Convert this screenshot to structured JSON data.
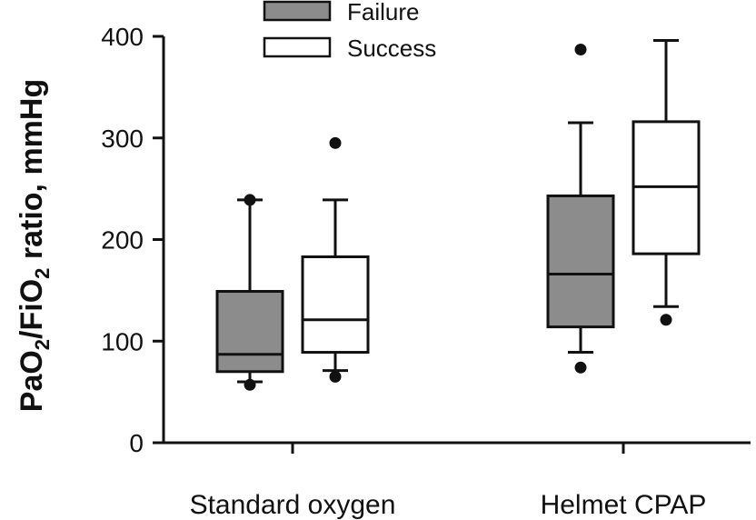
{
  "chart_data": {
    "type": "boxplot",
    "ylabel": {
      "parts": [
        "PaO",
        "2",
        "/FiO",
        "2",
        " ratio, mmHg"
      ],
      "subscript_indexes": [
        1,
        3
      ]
    },
    "ylim": [
      0,
      400
    ],
    "yticks": [
      "0",
      "100",
      "200",
      "300",
      "400"
    ],
    "categories": [
      "Standard oxygen",
      "Helmet CPAP"
    ],
    "legend": {
      "position": "top-center",
      "entries": [
        {
          "name": "Failure",
          "color": "#8c8c8c"
        },
        {
          "name": "Success",
          "color": "#ffffff"
        }
      ]
    },
    "series": [
      {
        "name": "Failure",
        "color": "#8c8c8c",
        "boxes": [
          {
            "category": "Standard oxygen",
            "whisker_low": 60,
            "q1": 70,
            "median": 87,
            "q3": 149,
            "whisker_high": 239,
            "outliers": [
              57,
              239
            ]
          },
          {
            "category": "Helmet CPAP",
            "whisker_low": 89,
            "q1": 114,
            "median": 166,
            "q3": 243,
            "whisker_high": 315,
            "outliers": [
              74,
              387
            ]
          }
        ]
      },
      {
        "name": "Success",
        "color": "#ffffff",
        "boxes": [
          {
            "category": "Standard oxygen",
            "whisker_low": 71,
            "q1": 89,
            "median": 121,
            "q3": 183,
            "whisker_high": 239,
            "outliers": [
              65,
              295
            ]
          },
          {
            "category": "Helmet CPAP",
            "whisker_low": 134,
            "q1": 186,
            "median": 252,
            "q3": 316,
            "whisker_high": 396,
            "outliers": [
              121
            ]
          }
        ]
      }
    ]
  }
}
